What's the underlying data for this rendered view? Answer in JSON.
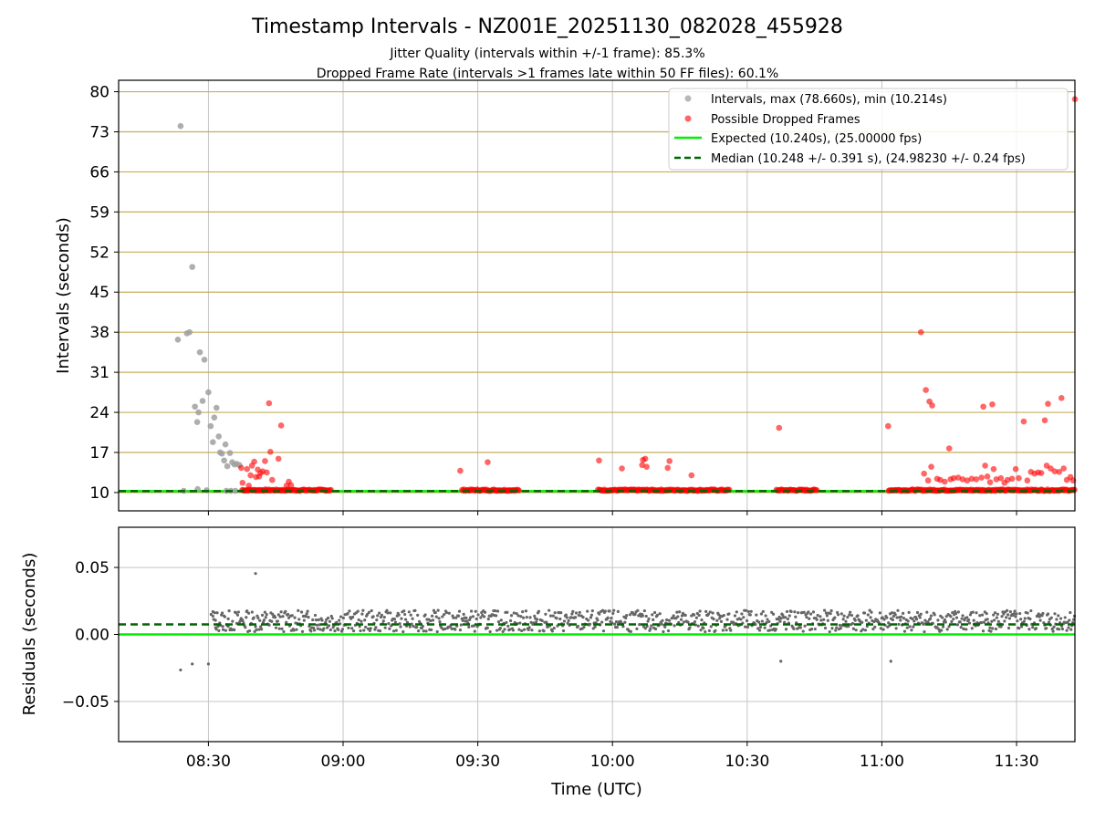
{
  "chart_data": [
    {
      "type": "scatter",
      "title": "Timestamp Intervals - NZ001E_20251130_082028_455928",
      "subtitle_1": "Jitter Quality (intervals within +/-1 frame): 85.3%",
      "subtitle_2": "Dropped Frame Rate (intervals >1 frames late within 50 FF files): 60.1%",
      "xlabel": "",
      "ylabel": "Intervals (seconds)",
      "xlim_minutes": [
        490,
        703
      ],
      "ylim": [
        6.8,
        82
      ],
      "yticks": [
        10,
        17,
        24,
        31,
        38,
        45,
        52,
        59,
        66,
        73,
        80
      ],
      "ytick_labels": [
        "10",
        "17",
        "24",
        "31",
        "38",
        "45",
        "52",
        "59",
        "66",
        "73",
        "80"
      ],
      "xticks_minutes": [
        510,
        540,
        570,
        600,
        630,
        660,
        690
      ],
      "expected_interval": 10.24,
      "median_interval": 10.248,
      "legend_position": "upper right",
      "legend": [
        "Intervals, max (78.660s), min (10.214s)",
        "Possible Dropped Frames",
        "Expected (10.240s), (25.00000 fps)",
        "Median (10.248 +/- 0.391 s), (24.98230 +/- 0.24 fps)"
      ],
      "colors": {
        "intervals": "#a0a0a0",
        "dropped": "#ff0000",
        "expected": "#00ee00",
        "median": "#006400",
        "hgrid": "#c8ad5a",
        "vgrid": "#c4c4c4"
      },
      "series": [
        {
          "name": "Intervals",
          "points": [
            [
              503.2,
              36.7
            ],
            [
              503.8,
              74.0
            ],
            [
              504.5,
              10.3
            ],
            [
              505.2,
              37.8
            ],
            [
              505.8,
              38.0
            ],
            [
              506.4,
              49.4
            ],
            [
              507.0,
              25.0
            ],
            [
              507.5,
              22.3
            ],
            [
              507.8,
              24.0
            ],
            [
              507.6,
              10.6
            ],
            [
              508.1,
              34.5
            ],
            [
              508.7,
              26.0
            ],
            [
              509.1,
              33.2
            ],
            [
              509.6,
              10.4
            ],
            [
              510.0,
              27.5
            ],
            [
              510.5,
              21.6
            ],
            [
              511.0,
              18.8
            ],
            [
              511.3,
              23.1
            ],
            [
              511.8,
              24.8
            ],
            [
              512.3,
              19.8
            ],
            [
              512.6,
              17.0
            ],
            [
              513.0,
              16.8
            ],
            [
              513.5,
              15.6
            ],
            [
              513.8,
              18.4
            ],
            [
              514.2,
              14.6
            ],
            [
              514.8,
              16.9
            ],
            [
              515.3,
              15.3
            ],
            [
              515.8,
              14.9
            ],
            [
              516.3,
              15.0
            ],
            [
              516.9,
              14.8
            ],
            [
              514.0,
              10.3
            ],
            [
              515.0,
              10.3
            ],
            [
              516.0,
              10.3
            ]
          ]
        },
        {
          "name": "Possible Dropped Frames",
          "segments": [
            [
              517.5,
              537.5
            ],
            [
              566.5,
              579.2
            ],
            [
              596.8,
              626.2
            ],
            [
              636.5,
              645.5
            ],
            [
              661.5,
              703
            ]
          ],
          "points": [
            [
              517.3,
              14.3
            ],
            [
              517.6,
              11.7
            ],
            [
              518.6,
              14.1
            ],
            [
              519.0,
              11.2
            ],
            [
              519.4,
              13.0
            ],
            [
              519.7,
              14.7
            ],
            [
              520.2,
              15.4
            ],
            [
              520.6,
              12.7
            ],
            [
              521.0,
              14.0
            ],
            [
              521.3,
              12.8
            ],
            [
              521.6,
              13.4
            ],
            [
              522.1,
              13.7
            ],
            [
              522.6,
              15.5
            ],
            [
              523.0,
              13.5
            ],
            [
              523.5,
              25.6
            ],
            [
              523.8,
              17.1
            ],
            [
              524.2,
              12.2
            ],
            [
              525.6,
              15.9
            ],
            [
              526.2,
              21.7
            ],
            [
              527.4,
              11.2
            ],
            [
              527.9,
              11.9
            ],
            [
              528.4,
              11.3
            ],
            [
              566.1,
              13.8
            ],
            [
              572.2,
              15.3
            ],
            [
              597.0,
              15.6
            ],
            [
              602.1,
              14.2
            ],
            [
              606.6,
              14.8
            ],
            [
              606.8,
              15.7
            ],
            [
              607.3,
              15.9
            ],
            [
              607.6,
              14.5
            ],
            [
              612.3,
              14.3
            ],
            [
              612.7,
              15.5
            ],
            [
              617.6,
              13.0
            ],
            [
              637.1,
              21.3
            ],
            [
              661.4,
              21.6
            ],
            [
              668.7,
              38.0
            ],
            [
              669.4,
              13.3
            ],
            [
              669.8,
              27.9
            ],
            [
              670.6,
              25.9
            ],
            [
              671.2,
              25.2
            ],
            [
              671.0,
              14.5
            ],
            [
              670.3,
              12.1
            ],
            [
              672.3,
              12.4
            ],
            [
              673.0,
              12.2
            ],
            [
              674.0,
              11.9
            ],
            [
              675.0,
              17.7
            ],
            [
              675.3,
              12.3
            ],
            [
              676.0,
              12.5
            ],
            [
              677.0,
              12.6
            ],
            [
              678.0,
              12.3
            ],
            [
              679.0,
              12.1
            ],
            [
              680.0,
              12.4
            ],
            [
              681.0,
              12.3
            ],
            [
              682.2,
              12.6
            ],
            [
              682.6,
              25.0
            ],
            [
              683.0,
              14.7
            ],
            [
              683.5,
              12.8
            ],
            [
              684.1,
              11.8
            ],
            [
              684.6,
              25.4
            ],
            [
              684.9,
              14.1
            ],
            [
              685.5,
              12.3
            ],
            [
              686.5,
              12.5
            ],
            [
              687.3,
              11.7
            ],
            [
              688.0,
              12.2
            ],
            [
              689.0,
              12.4
            ],
            [
              689.8,
              14.1
            ],
            [
              690.5,
              12.5
            ],
            [
              691.6,
              22.4
            ],
            [
              692.4,
              12.1
            ],
            [
              693.2,
              13.6
            ],
            [
              694.0,
              13.3
            ],
            [
              694.8,
              13.5
            ],
            [
              695.5,
              13.4
            ],
            [
              696.3,
              22.6
            ],
            [
              696.7,
              14.7
            ],
            [
              697.0,
              25.5
            ],
            [
              697.6,
              14.2
            ],
            [
              698.5,
              13.7
            ],
            [
              699.5,
              13.6
            ],
            [
              700.0,
              26.5
            ],
            [
              700.5,
              14.2
            ],
            [
              701.2,
              12.2
            ],
            [
              702.0,
              12.7
            ],
            [
              702.6,
              12.1
            ],
            [
              703.0,
              78.7
            ]
          ]
        }
      ]
    },
    {
      "type": "scatter",
      "title": "",
      "xlabel": "Time (UTC)",
      "ylabel": "Residuals (seconds)",
      "xlim_minutes": [
        490,
        703
      ],
      "ylim": [
        -0.08,
        0.08
      ],
      "yticks": [
        -0.05,
        0.0,
        0.05
      ],
      "ytick_labels": [
        "−0.05",
        "0.00",
        "0.05"
      ],
      "xticks_minutes": [
        510,
        540,
        570,
        600,
        630,
        660,
        690
      ],
      "xtick_labels": [
        "08:30",
        "09:00",
        "09:30",
        "10:00",
        "10:30",
        "11:00",
        "11:30"
      ],
      "expected": 0.0,
      "median": 0.0075,
      "residual_band": [
        0.002,
        0.018
      ],
      "residual_range_minutes": [
        511,
        703
      ],
      "residual_outliers": [
        [
          503.8,
          -0.0265
        ],
        [
          506.4,
          -0.022
        ],
        [
          510.0,
          -0.022
        ],
        [
          510.6,
          0.015
        ],
        [
          511.0,
          0.017
        ],
        [
          511.6,
          0.005
        ],
        [
          513.2,
          0.006
        ],
        [
          514.4,
          0.006
        ],
        [
          518.5,
          0.017
        ],
        [
          520.5,
          0.0455
        ],
        [
          637.5,
          -0.02
        ],
        [
          662.0,
          -0.02
        ]
      ],
      "colors": {
        "points": "#666666",
        "expected": "#00ee00",
        "median": "#006400",
        "grid": "#c4c4c4"
      }
    }
  ]
}
